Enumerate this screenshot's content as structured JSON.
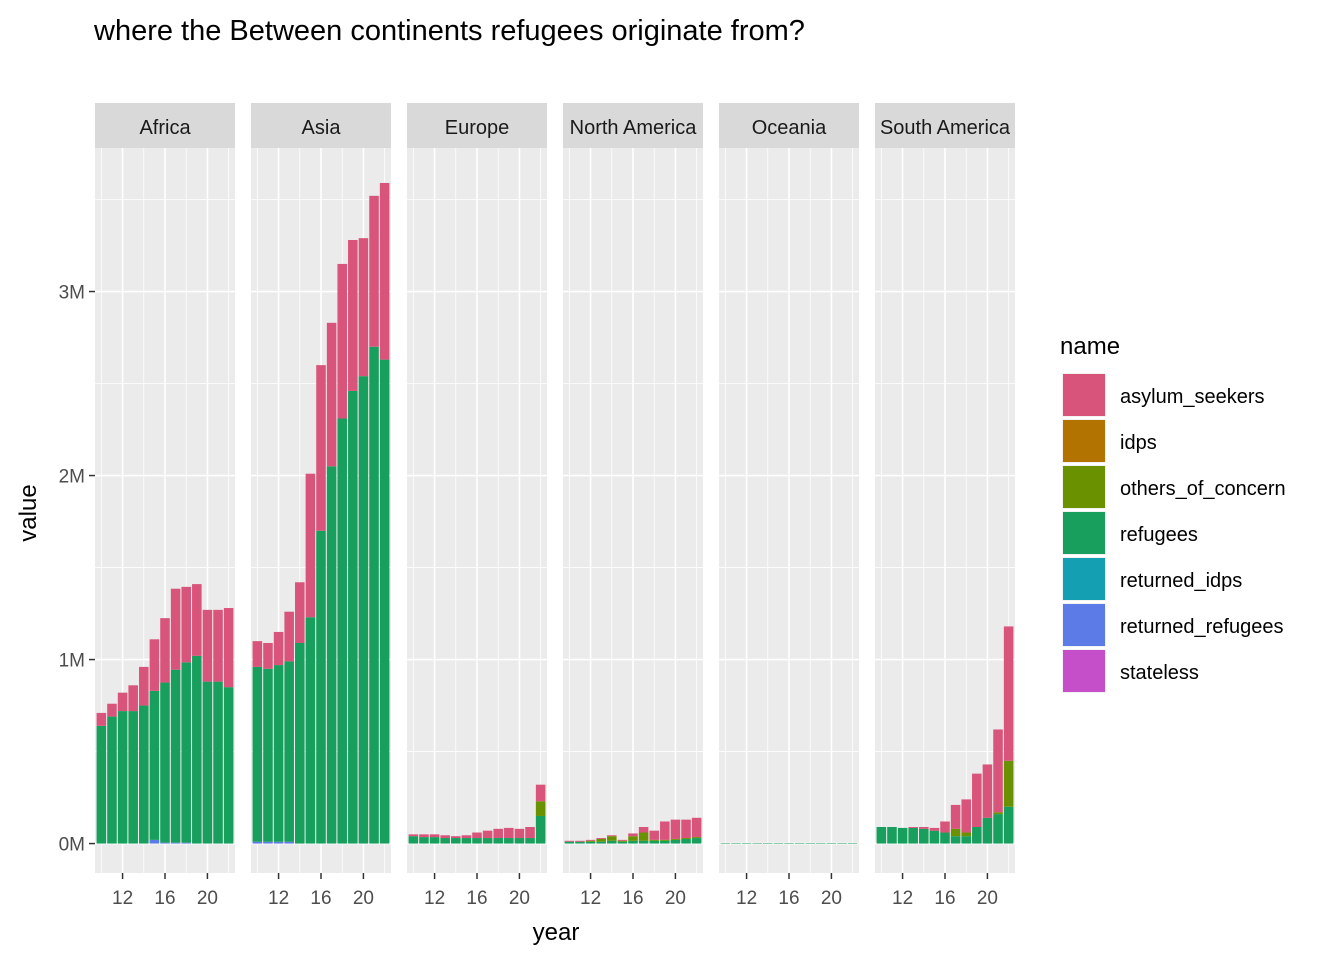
{
  "chart_data": {
    "type": "bar",
    "stacked": true,
    "faceted_by": "continent",
    "title": "where the Between continents refugees originate from?",
    "xlabel": "year",
    "ylabel": "value",
    "ylim": [
      -160000,
      3780000
    ],
    "y_ticks": [
      {
        "value": 0,
        "label": "0M"
      },
      {
        "value": 1000000,
        "label": "1M"
      },
      {
        "value": 2000000,
        "label": "2M"
      },
      {
        "value": 3000000,
        "label": "3M"
      }
    ],
    "x_years": [
      10,
      11,
      12,
      13,
      14,
      15,
      16,
      17,
      18,
      19,
      20,
      21,
      22
    ],
    "xlim": [
      9.4,
      22.6
    ],
    "x_ticks": [
      {
        "value": 12,
        "label": "12"
      },
      {
        "value": 16,
        "label": "16"
      },
      {
        "value": 20,
        "label": "20"
      }
    ],
    "legend": {
      "title": "name",
      "position": "right",
      "entries": [
        {
          "key": "asylum_seekers",
          "label": "asylum_seekers",
          "color": "#D9547A"
        },
        {
          "key": "idps",
          "label": "idps",
          "color": "#B37300"
        },
        {
          "key": "others_of_concern",
          "label": "others_of_concern",
          "color": "#6A9100"
        },
        {
          "key": "refugees",
          "label": "refugees",
          "color": "#189F5D"
        },
        {
          "key": "returned_idps",
          "label": "returned_idps",
          "color": "#159FB3"
        },
        {
          "key": "returned_refugees",
          "label": "returned_refugees",
          "color": "#5C7BE6"
        },
        {
          "key": "stateless",
          "label": "stateless",
          "color": "#C54FC9"
        }
      ]
    },
    "stack_order": [
      "returned_refugees",
      "refugees",
      "others_of_concern",
      "asylum_seekers"
    ],
    "panels": [
      {
        "name": "Africa",
        "series": {
          "returned_refugees": [
            0,
            0,
            0,
            0,
            0,
            20000,
            5000,
            5000,
            5000,
            0,
            0,
            0,
            0
          ],
          "refugees": [
            640000,
            690000,
            720000,
            720000,
            750000,
            810000,
            870000,
            940000,
            980000,
            1020000,
            880000,
            880000,
            850000
          ],
          "others_of_concern": [
            0,
            0,
            0,
            0,
            0,
            0,
            0,
            0,
            0,
            0,
            0,
            0,
            0
          ],
          "asylum_seekers": [
            70000,
            70000,
            100000,
            140000,
            210000,
            280000,
            350000,
            440000,
            410000,
            390000,
            390000,
            390000,
            430000
          ]
        }
      },
      {
        "name": "Asia",
        "series": {
          "returned_refugees": [
            10000,
            10000,
            10000,
            10000,
            0,
            0,
            0,
            0,
            0,
            0,
            0,
            0,
            0
          ],
          "refugees": [
            950000,
            940000,
            960000,
            980000,
            1090000,
            1230000,
            1700000,
            2050000,
            2310000,
            2460000,
            2540000,
            2700000,
            2630000
          ],
          "others_of_concern": [
            0,
            0,
            0,
            0,
            0,
            0,
            0,
            0,
            0,
            0,
            0,
            0,
            0
          ],
          "asylum_seekers": [
            140000,
            140000,
            180000,
            270000,
            330000,
            780000,
            900000,
            780000,
            840000,
            820000,
            750000,
            820000,
            960000
          ]
        }
      },
      {
        "name": "Europe",
        "series": {
          "returned_refugees": [
            0,
            0,
            0,
            0,
            0,
            0,
            0,
            0,
            0,
            0,
            0,
            0,
            0
          ],
          "refugees": [
            40000,
            35000,
            35000,
            30000,
            30000,
            30000,
            30000,
            30000,
            30000,
            30000,
            30000,
            30000,
            150000
          ],
          "others_of_concern": [
            0,
            0,
            0,
            0,
            0,
            0,
            0,
            0,
            0,
            0,
            0,
            0,
            80000
          ],
          "asylum_seekers": [
            10000,
            15000,
            15000,
            15000,
            10000,
            15000,
            30000,
            40000,
            50000,
            55000,
            50000,
            60000,
            90000
          ]
        }
      },
      {
        "name": "North America",
        "series": {
          "returned_refugees": [
            0,
            0,
            0,
            0,
            0,
            0,
            0,
            0,
            0,
            0,
            0,
            0,
            0
          ],
          "refugees": [
            10000,
            10000,
            10000,
            10000,
            15000,
            10000,
            15000,
            15000,
            15000,
            15000,
            20000,
            25000,
            30000
          ],
          "others_of_concern": [
            0,
            0,
            5000,
            15000,
            25000,
            5000,
            25000,
            45000,
            5000,
            5000,
            5000,
            5000,
            5000
          ],
          "asylum_seekers": [
            5000,
            5000,
            5000,
            5000,
            5000,
            5000,
            15000,
            30000,
            50000,
            100000,
            105000,
            100000,
            105000
          ]
        }
      },
      {
        "name": "Oceania",
        "series": {
          "returned_refugees": [
            0,
            0,
            0,
            0,
            0,
            0,
            0,
            0,
            0,
            0,
            0,
            0,
            0
          ],
          "refugees": [
            2000,
            2000,
            1000,
            1000,
            1000,
            1000,
            1000,
            1000,
            1000,
            1000,
            1000,
            1000,
            1000
          ],
          "others_of_concern": [
            0,
            0,
            0,
            0,
            0,
            0,
            0,
            0,
            0,
            0,
            0,
            0,
            0
          ],
          "asylum_seekers": [
            0,
            0,
            0,
            0,
            0,
            0,
            0,
            0,
            0,
            0,
            0,
            0,
            0
          ]
        }
      },
      {
        "name": "South America",
        "series": {
          "returned_refugees": [
            0,
            0,
            0,
            0,
            0,
            0,
            0,
            0,
            0,
            0,
            0,
            0,
            0
          ],
          "refugees": [
            90000,
            90000,
            85000,
            85000,
            80000,
            70000,
            60000,
            40000,
            40000,
            90000,
            140000,
            160000,
            200000
          ],
          "others_of_concern": [
            0,
            0,
            0,
            0,
            0,
            0,
            0,
            40000,
            20000,
            0,
            0,
            10000,
            250000
          ],
          "asylum_seekers": [
            0,
            0,
            0,
            5000,
            10000,
            15000,
            60000,
            130000,
            180000,
            290000,
            290000,
            450000,
            730000
          ]
        }
      }
    ]
  }
}
